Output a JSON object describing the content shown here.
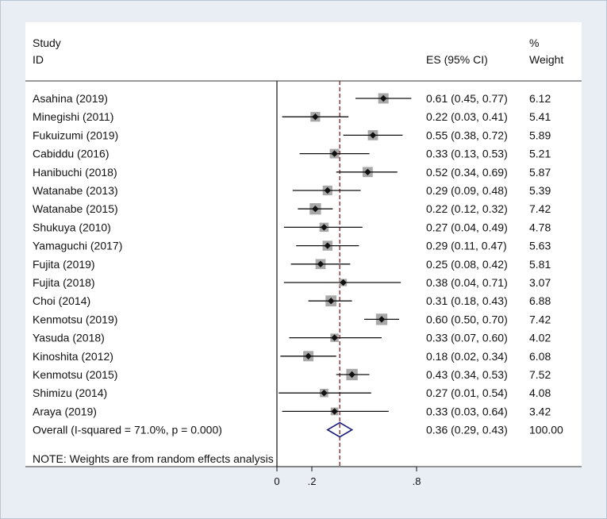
{
  "chart_data": {
    "type": "forest",
    "title": "",
    "header": {
      "study_line1": "Study",
      "study_line2": "ID",
      "es": "ES (95% CI)",
      "weight_line1": "%",
      "weight_line2": "Weight"
    },
    "studies": [
      {
        "id": "Asahina (2019)",
        "es": 0.61,
        "lo": 0.45,
        "hi": 0.77,
        "es_text": "0.61 (0.45, 0.77)",
        "weight": 6.12,
        "weight_text": "6.12"
      },
      {
        "id": "Minegishi (2011)",
        "es": 0.22,
        "lo": 0.03,
        "hi": 0.41,
        "es_text": "0.22 (0.03, 0.41)",
        "weight": 5.41,
        "weight_text": "5.41"
      },
      {
        "id": "Fukuizumi (2019)",
        "es": 0.55,
        "lo": 0.38,
        "hi": 0.72,
        "es_text": "0.55 (0.38, 0.72)",
        "weight": 5.89,
        "weight_text": "5.89"
      },
      {
        "id": "Cabiddu (2016)",
        "es": 0.33,
        "lo": 0.13,
        "hi": 0.53,
        "es_text": "0.33 (0.13, 0.53)",
        "weight": 5.21,
        "weight_text": "5.21"
      },
      {
        "id": "Hanibuchi (2018)",
        "es": 0.52,
        "lo": 0.34,
        "hi": 0.69,
        "es_text": "0.52 (0.34, 0.69)",
        "weight": 5.87,
        "weight_text": "5.87"
      },
      {
        "id": "Watanabe (2013)",
        "es": 0.29,
        "lo": 0.09,
        "hi": 0.48,
        "es_text": "0.29 (0.09, 0.48)",
        "weight": 5.39,
        "weight_text": "5.39"
      },
      {
        "id": "Watanabe (2015)",
        "es": 0.22,
        "lo": 0.12,
        "hi": 0.32,
        "es_text": "0.22 (0.12, 0.32)",
        "weight": 7.42,
        "weight_text": "7.42"
      },
      {
        "id": "Shukuya (2010)",
        "es": 0.27,
        "lo": 0.04,
        "hi": 0.49,
        "es_text": "0.27 (0.04, 0.49)",
        "weight": 4.78,
        "weight_text": "4.78"
      },
      {
        "id": "Yamaguchi (2017)",
        "es": 0.29,
        "lo": 0.11,
        "hi": 0.47,
        "es_text": "0.29 (0.11, 0.47)",
        "weight": 5.63,
        "weight_text": "5.63"
      },
      {
        "id": "Fujita (2019)",
        "es": 0.25,
        "lo": 0.08,
        "hi": 0.42,
        "es_text": "0.25 (0.08, 0.42)",
        "weight": 5.81,
        "weight_text": "5.81"
      },
      {
        "id": "Fujita (2018)",
        "es": 0.38,
        "lo": 0.04,
        "hi": 0.71,
        "es_text": "0.38 (0.04, 0.71)",
        "weight": 3.07,
        "weight_text": "3.07"
      },
      {
        "id": "Choi (2014)",
        "es": 0.31,
        "lo": 0.18,
        "hi": 0.43,
        "es_text": "0.31 (0.18, 0.43)",
        "weight": 6.88,
        "weight_text": "6.88"
      },
      {
        "id": "Kenmotsu (2019)",
        "es": 0.6,
        "lo": 0.5,
        "hi": 0.7,
        "es_text": "0.60 (0.50, 0.70)",
        "weight": 7.42,
        "weight_text": "7.42"
      },
      {
        "id": "Yasuda (2018)",
        "es": 0.33,
        "lo": 0.07,
        "hi": 0.6,
        "es_text": "0.33 (0.07, 0.60)",
        "weight": 4.02,
        "weight_text": "4.02"
      },
      {
        "id": "Kinoshita (2012)",
        "es": 0.18,
        "lo": 0.02,
        "hi": 0.34,
        "es_text": "0.18 (0.02, 0.34)",
        "weight": 6.08,
        "weight_text": "6.08"
      },
      {
        "id": "Kenmotsu (2015)",
        "es": 0.43,
        "lo": 0.34,
        "hi": 0.53,
        "es_text": "0.43 (0.34, 0.53)",
        "weight": 7.52,
        "weight_text": "7.52"
      },
      {
        "id": "Shimizu (2014)",
        "es": 0.27,
        "lo": 0.01,
        "hi": 0.54,
        "es_text": "0.27 (0.01, 0.54)",
        "weight": 4.08,
        "weight_text": "4.08"
      },
      {
        "id": "Araya (2019)",
        "es": 0.33,
        "lo": 0.03,
        "hi": 0.64,
        "es_text": "0.33 (0.03, 0.64)",
        "weight": 3.42,
        "weight_text": "3.42"
      }
    ],
    "overall": {
      "label": "Overall  (I-squared = 71.0%, p = 0.000)",
      "es": 0.36,
      "lo": 0.29,
      "hi": 0.43,
      "es_text": "0.36 (0.29, 0.43)",
      "weight_text": "100.00"
    },
    "note": "NOTE: Weights are from random effects analysis",
    "x_axis": {
      "range": [
        0,
        1
      ],
      "ticks": [
        {
          "value": 0,
          "label": "0"
        },
        {
          "value": 0.2,
          "label": ".2"
        },
        {
          "value": 0.8,
          "label": ".8"
        }
      ]
    },
    "null_line": 0,
    "colors": {
      "overall_line": "#8b2a2a",
      "diamond": "#1a1a7a",
      "box": "#a8a8a8",
      "point": "#111111"
    }
  }
}
